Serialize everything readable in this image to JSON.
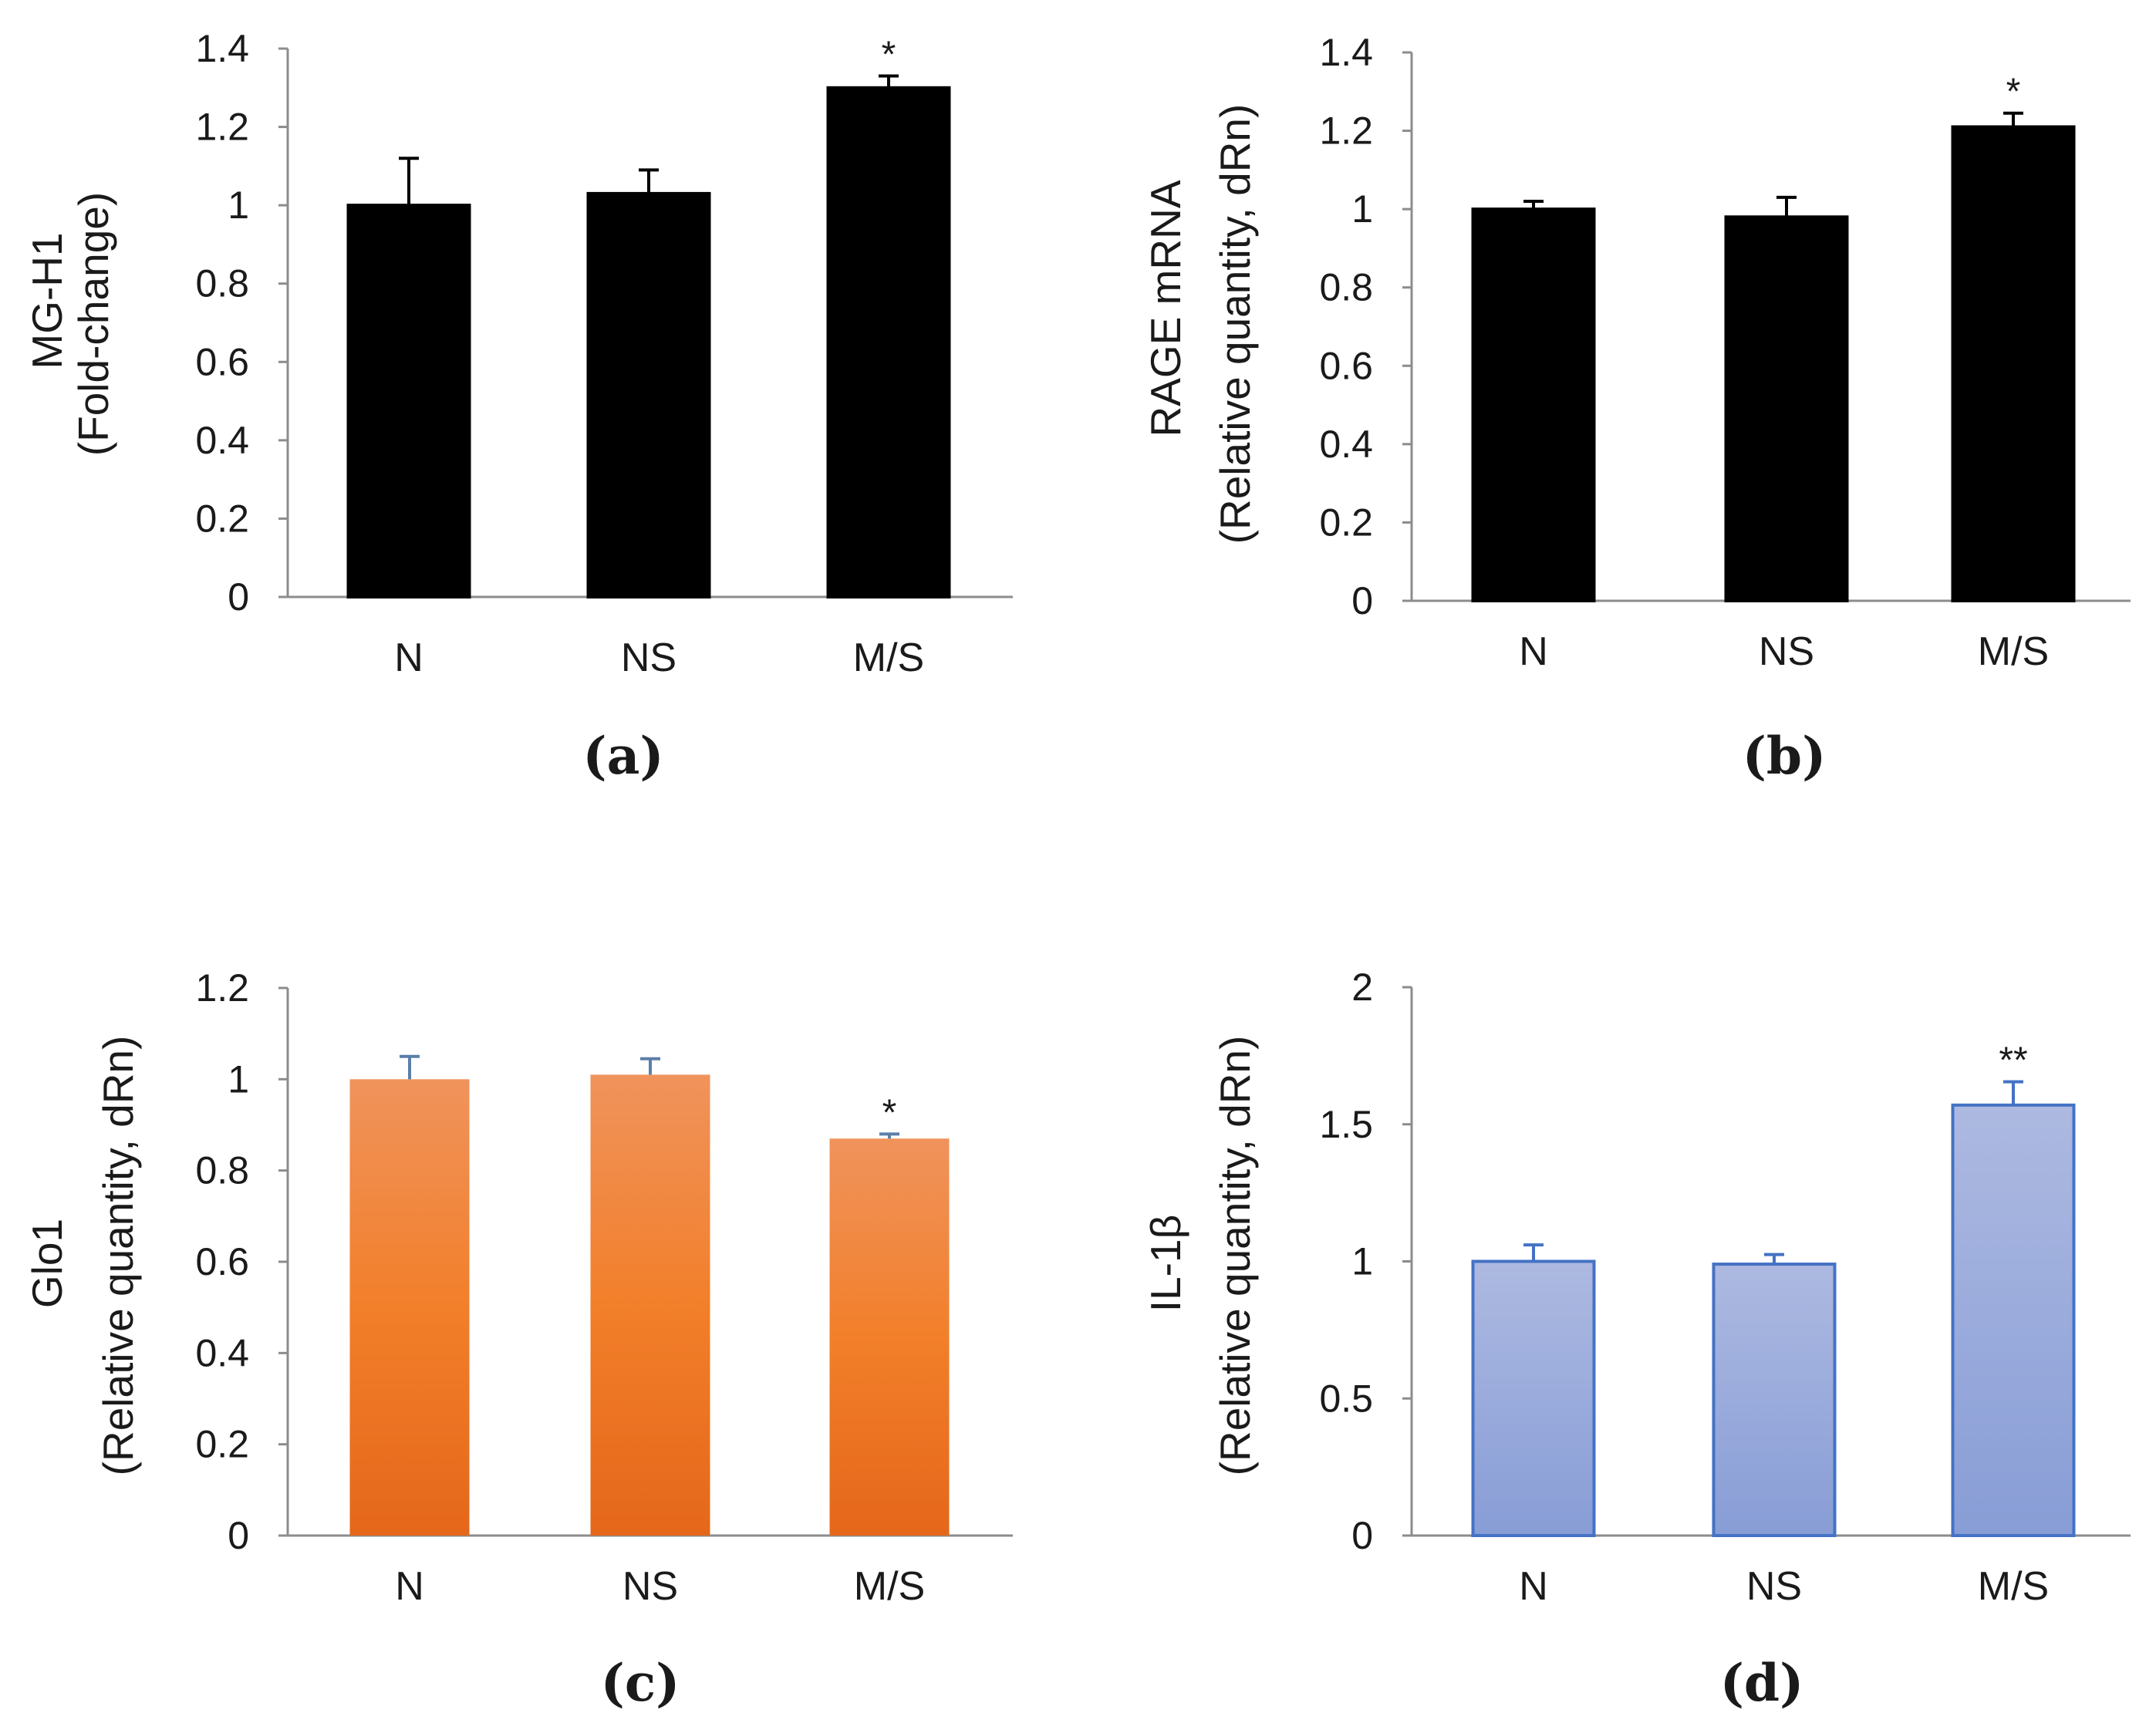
{
  "chart_data": [
    {
      "panel": "(a)",
      "type": "bar",
      "ylabel_line1": "MG-H1",
      "ylabel_line2": "(Fold-change)",
      "categories": [
        "N",
        "NS",
        "M/S"
      ],
      "values": [
        1.0,
        1.03,
        1.3
      ],
      "errors": [
        0.12,
        0.06,
        0.03
      ],
      "significance": [
        "",
        "",
        "*"
      ],
      "ylim": [
        0,
        1.4
      ],
      "ticks": [
        0,
        0.2,
        0.4,
        0.6,
        0.8,
        1,
        1.2,
        1.4
      ],
      "tick_labels": [
        "0",
        "0.2",
        "0.4",
        "0.6",
        "0.8",
        "1",
        "1.2",
        "1.4"
      ],
      "style": "solid",
      "fill": "#000000",
      "stroke": "#000000",
      "error_color": "#000000"
    },
    {
      "panel": "(b)",
      "type": "bar",
      "ylabel_line1": "RAGE mRNA",
      "ylabel_line2": "(Relative quantity, dRn)",
      "categories": [
        "N",
        "NS",
        "M/S"
      ],
      "values": [
        1.0,
        0.98,
        1.21
      ],
      "errors": [
        0.02,
        0.05,
        0.035
      ],
      "significance": [
        "",
        "",
        "*"
      ],
      "ylim": [
        0,
        1.4
      ],
      "ticks": [
        0,
        0.2,
        0.4,
        0.6,
        0.8,
        1,
        1.2,
        1.4
      ],
      "tick_labels": [
        "0",
        "0.2",
        "0.4",
        "0.6",
        "0.8",
        "1",
        "1.2",
        "1.4"
      ],
      "style": "solid",
      "fill": "#000000",
      "stroke": "#000000",
      "error_color": "#000000"
    },
    {
      "panel": "(c)",
      "type": "bar",
      "ylabel_line1": "Glo1",
      "ylabel_line2": "(Relative quantity, dRn)",
      "categories": [
        "N",
        "NS",
        "M/S"
      ],
      "values": [
        1.0,
        1.01,
        0.87
      ],
      "errors": [
        0.05,
        0.035,
        0.01
      ],
      "significance": [
        "",
        "",
        "*"
      ],
      "ylim": [
        0,
        1.2
      ],
      "ticks": [
        0,
        0.2,
        0.4,
        0.6,
        0.8,
        1,
        1.2
      ],
      "tick_labels": [
        "0",
        "0.2",
        "0.4",
        "0.6",
        "0.8",
        "1",
        "1.2"
      ],
      "style": "gradient",
      "grad_top": "#f0935c",
      "grad_mid": "#f27f2a",
      "grad_bottom": "#e5671a",
      "stroke": "none",
      "error_color": "#5b7fa8"
    },
    {
      "panel": "(d)",
      "type": "bar",
      "ylabel_line1": "IL-1β",
      "ylabel_line2": "(Relative quantity, dRn)",
      "categories": [
        "N",
        "NS",
        "M/S"
      ],
      "values": [
        1.0,
        0.99,
        1.57
      ],
      "errors": [
        0.06,
        0.035,
        0.085
      ],
      "significance": [
        "",
        "",
        "**"
      ],
      "ylim": [
        0,
        2
      ],
      "ticks": [
        0,
        0.5,
        1,
        1.5,
        2
      ],
      "tick_labels": [
        "0",
        "0.5",
        "1",
        "1.5",
        "2"
      ],
      "style": "gradient",
      "grad_top": "#adb9e0",
      "grad_mid": "#9aabdc",
      "grad_bottom": "#889dd6",
      "stroke": "#4472c4",
      "error_color": "#4472c4"
    }
  ]
}
